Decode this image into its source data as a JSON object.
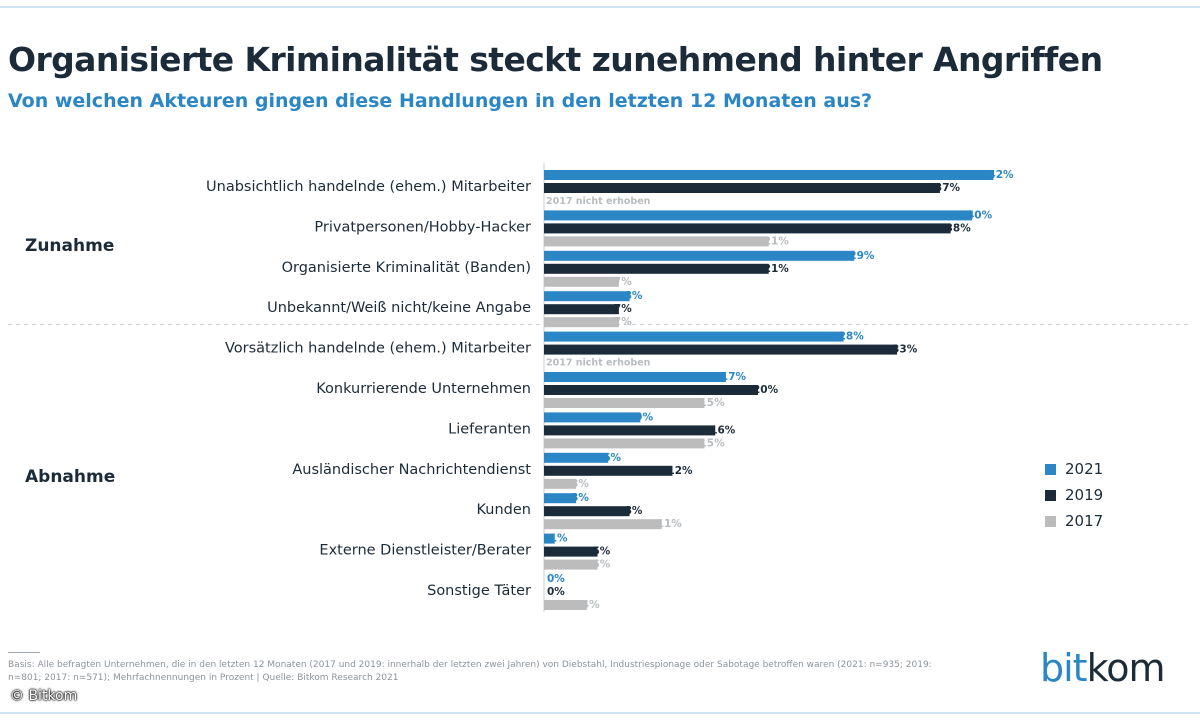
{
  "chart_data": {
    "type": "bar",
    "orientation": "horizontal",
    "title": "Organisierte Kriminalität steckt zunehmend hinter Angriffen",
    "subtitle": "Von welchen Akteuren gingen diese Handlungen in den letzten 12 Monaten aus?",
    "groups": [
      {
        "label": "Zunahme",
        "categories": [
          0,
          1,
          2,
          3
        ]
      },
      {
        "label": "Abnahme",
        "categories": [
          4,
          5,
          6,
          7,
          8,
          9,
          10
        ]
      }
    ],
    "categories": [
      "Unabsichtlich handelnde (ehem.) Mitarbeiter",
      "Privatpersonen/Hobby-Hacker",
      "Organisierte Kriminalität (Banden)",
      "Unbekannt/Weiß nicht/keine Angabe",
      "Vorsätzlich handelnde (ehem.) Mitarbeiter",
      "Konkurrierende Unternehmen",
      "Lieferanten",
      "Ausländischer Nachrichtendienst",
      "Kunden",
      "Externe Dienstleister/Berater",
      "Sonstige Täter"
    ],
    "series": [
      {
        "name": "2021",
        "color": "#2a86c4",
        "values": [
          42,
          40,
          29,
          8,
          28,
          17,
          9,
          6,
          3,
          1,
          0
        ]
      },
      {
        "name": "2019",
        "color": "#1c2b39",
        "values": [
          37,
          38,
          21,
          7,
          33,
          20,
          16,
          12,
          8,
          5,
          0
        ]
      },
      {
        "name": "2017",
        "color": "#bcbcbc",
        "values": [
          null,
          21,
          7,
          7,
          null,
          15,
          15,
          3,
          11,
          5,
          4
        ]
      }
    ],
    "value_suffix": "%",
    "missing_label": "2017 nicht erhoben",
    "xlim": [
      0,
      50
    ],
    "legend": "bottom-right"
  },
  "footnote": "Basis: Alle befragten Unternehmen, die in den letzten 12 Monaten (2017 und 2019: innerhalb der letzten zwei Jahren) von Diebstahl, Industriespionage oder Sabotage betroffen waren (2021: n=935; 2019: n=801; 2017: n=571); Mehrfachnennungen in Prozent | Quelle: Bitkom Research 2021",
  "logo": {
    "part1": "bit",
    "part2": "kom"
  },
  "credit": "© Bitkom"
}
